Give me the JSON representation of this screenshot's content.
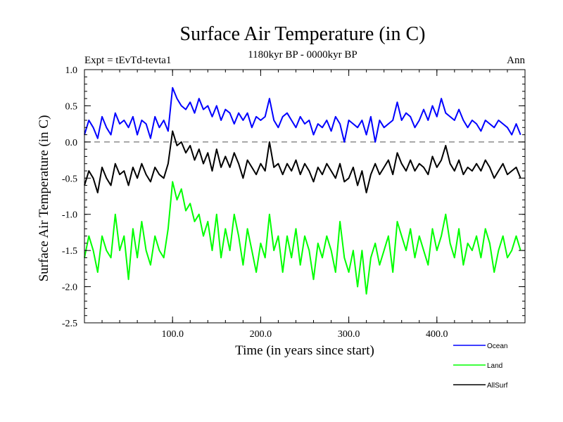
{
  "chart_data": {
    "type": "line",
    "title": "Surface Air Temperature (in C)",
    "subtitle": "1180kyr BP - 0000kyr BP",
    "experiment_label": "Expt = tEvTd-tevta1",
    "season_label": "Ann",
    "xlabel": "Time (in years since start)",
    "ylabel": "Surface Air Temperature (in C)",
    "xlim": [
      0,
      500
    ],
    "ylim": [
      -2.5,
      1.0
    ],
    "x_ticks": [
      100,
      200,
      300,
      400
    ],
    "x_tick_labels": [
      "100.0",
      "200.0",
      "300.0",
      "400.0"
    ],
    "y_ticks": [
      1.0,
      0.5,
      0.0,
      -0.5,
      -1.0,
      -1.5,
      -2.0,
      -2.5
    ],
    "y_tick_labels": [
      "1.0",
      "0.5",
      "0.0",
      "-0.5",
      "-1.0",
      "-1.5",
      "-2.0",
      "-2.5"
    ],
    "reference_line": 0.0,
    "legend_position": "bottom-right",
    "x_step": 5,
    "series": [
      {
        "name": "Ocean",
        "color": "#0000ff",
        "values": [
          0.1,
          0.3,
          0.2,
          0.05,
          0.35,
          0.2,
          0.1,
          0.4,
          0.25,
          0.3,
          0.2,
          0.35,
          0.1,
          0.3,
          0.25,
          0.05,
          0.35,
          0.2,
          0.3,
          0.15,
          0.75,
          0.6,
          0.5,
          0.45,
          0.55,
          0.4,
          0.6,
          0.45,
          0.5,
          0.35,
          0.5,
          0.3,
          0.45,
          0.4,
          0.25,
          0.4,
          0.3,
          0.4,
          0.2,
          0.35,
          0.3,
          0.35,
          0.6,
          0.3,
          0.2,
          0.35,
          0.4,
          0.3,
          0.2,
          0.35,
          0.25,
          0.3,
          0.1,
          0.25,
          0.2,
          0.3,
          0.15,
          0.35,
          0.25,
          0.0,
          0.3,
          0.25,
          0.2,
          0.3,
          0.1,
          0.35,
          0.0,
          0.3,
          0.2,
          0.25,
          0.3,
          0.55,
          0.3,
          0.4,
          0.35,
          0.2,
          0.3,
          0.45,
          0.3,
          0.5,
          0.35,
          0.6,
          0.4,
          0.35,
          0.3,
          0.45,
          0.3,
          0.2,
          0.3,
          0.25,
          0.15,
          0.3,
          0.25,
          0.2,
          0.3,
          0.25,
          0.2,
          0.1,
          0.25,
          0.1
        ]
      },
      {
        "name": "Land",
        "color": "#00ff00",
        "values": [
          -1.6,
          -1.3,
          -1.5,
          -1.8,
          -1.3,
          -1.5,
          -1.6,
          -1.0,
          -1.5,
          -1.3,
          -1.9,
          -1.2,
          -1.6,
          -1.1,
          -1.5,
          -1.7,
          -1.3,
          -1.5,
          -1.6,
          -1.2,
          -0.55,
          -0.8,
          -0.65,
          -0.95,
          -0.85,
          -1.1,
          -1.0,
          -1.3,
          -1.1,
          -1.5,
          -1.0,
          -1.6,
          -1.2,
          -1.5,
          -1.0,
          -1.3,
          -1.7,
          -1.2,
          -1.5,
          -1.8,
          -1.4,
          -1.6,
          -1.0,
          -1.5,
          -1.3,
          -1.8,
          -1.3,
          -1.6,
          -1.2,
          -1.7,
          -1.3,
          -1.5,
          -1.9,
          -1.4,
          -1.6,
          -1.3,
          -1.5,
          -1.8,
          -1.1,
          -1.6,
          -1.8,
          -1.5,
          -2.0,
          -1.5,
          -2.1,
          -1.6,
          -1.4,
          -1.7,
          -1.5,
          -1.3,
          -1.8,
          -1.1,
          -1.3,
          -1.5,
          -1.2,
          -1.6,
          -1.3,
          -1.5,
          -1.7,
          -1.2,
          -1.5,
          -1.3,
          -1.0,
          -1.4,
          -1.6,
          -1.2,
          -1.7,
          -1.4,
          -1.5,
          -1.3,
          -1.6,
          -1.2,
          -1.4,
          -1.8,
          -1.5,
          -1.3,
          -1.6,
          -1.5,
          -1.3,
          -1.5
        ]
      },
      {
        "name": "AllSurf",
        "color": "#000000",
        "values": [
          -0.6,
          -0.4,
          -0.5,
          -0.7,
          -0.35,
          -0.5,
          -0.6,
          -0.3,
          -0.45,
          -0.4,
          -0.6,
          -0.35,
          -0.5,
          -0.3,
          -0.45,
          -0.55,
          -0.35,
          -0.45,
          -0.5,
          -0.3,
          0.15,
          -0.05,
          0.0,
          -0.15,
          -0.05,
          -0.25,
          -0.1,
          -0.3,
          -0.15,
          -0.4,
          -0.1,
          -0.35,
          -0.2,
          -0.35,
          -0.15,
          -0.3,
          -0.5,
          -0.25,
          -0.35,
          -0.45,
          -0.3,
          -0.4,
          0.0,
          -0.35,
          -0.3,
          -0.45,
          -0.3,
          -0.4,
          -0.25,
          -0.45,
          -0.3,
          -0.4,
          -0.55,
          -0.35,
          -0.45,
          -0.3,
          -0.4,
          -0.5,
          -0.3,
          -0.55,
          -0.5,
          -0.35,
          -0.6,
          -0.4,
          -0.7,
          -0.45,
          -0.3,
          -0.45,
          -0.35,
          -0.25,
          -0.45,
          -0.15,
          -0.3,
          -0.4,
          -0.25,
          -0.4,
          -0.3,
          -0.35,
          -0.45,
          -0.2,
          -0.35,
          -0.25,
          -0.05,
          -0.3,
          -0.4,
          -0.25,
          -0.45,
          -0.35,
          -0.4,
          -0.3,
          -0.4,
          -0.25,
          -0.35,
          -0.5,
          -0.4,
          -0.3,
          -0.45,
          -0.4,
          -0.35,
          -0.5
        ]
      }
    ]
  }
}
